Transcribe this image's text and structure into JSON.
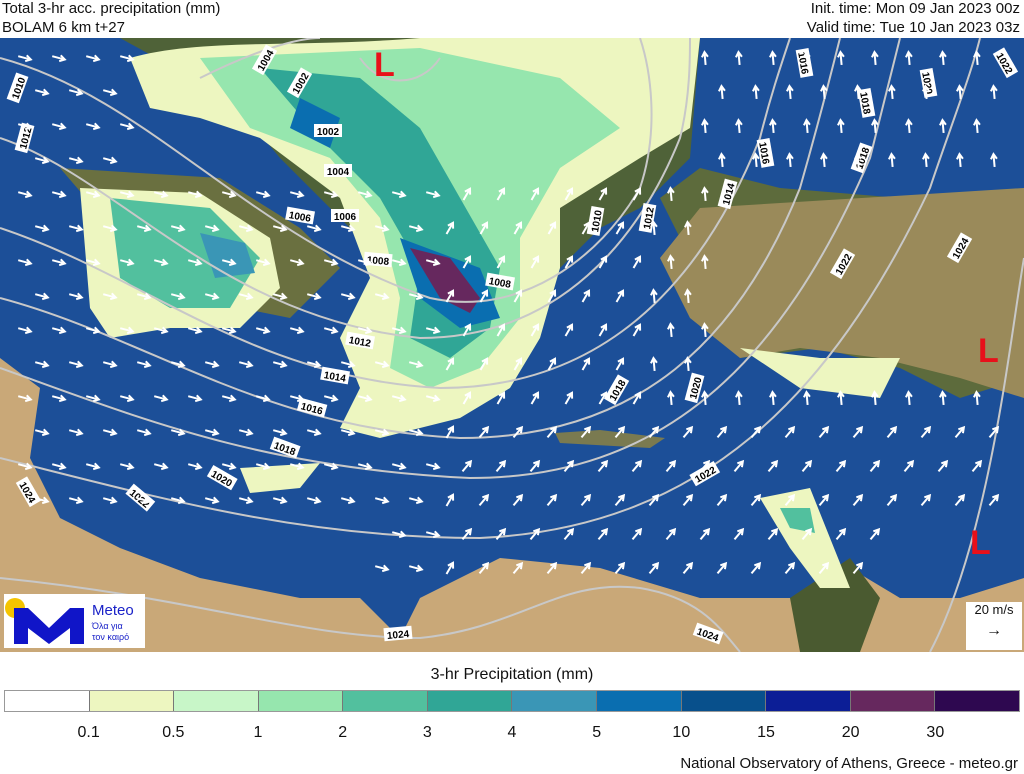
{
  "header": {
    "title": "Total 3-hr acc. precipitation (mm)",
    "subtitle": "BOLAM 6 km t+27",
    "init_time": "Init. time: Mon 09 Jan 2023 00z",
    "valid_time": "Valid time: Tue 10 Jan 2023 03z"
  },
  "map": {
    "colors": {
      "sea": "#1c4f98",
      "land": "#c8a878",
      "isobar": "#c8c8c8",
      "low_marker": "#e8101a"
    },
    "low_marker": "L",
    "isobar_labels": [
      "1010",
      "1012",
      "1004",
      "1002",
      "1002",
      "1004",
      "1006",
      "1006",
      "1008",
      "1008",
      "1010",
      "1012",
      "1012",
      "1014",
      "1016",
      "1018",
      "1020",
      "1022",
      "1024",
      "1024",
      "1024",
      "1016",
      "1016",
      "1018",
      "1018",
      "1020",
      "1022",
      "1022",
      "1024",
      "1014",
      "1018",
      "1020",
      "1022"
    ],
    "wind_scale": {
      "label": "20 m/s",
      "arrow": "→"
    }
  },
  "logo": {
    "brand": "Meteo",
    "tagline_1": "Όλα για",
    "tagline_2": "τον καιρό"
  },
  "colorbar": {
    "title": "3-hr Precipitation (mm)",
    "colors": [
      "#ffffff",
      "#edf6c0",
      "#c8f6c8",
      "#96e6ae",
      "#52c09e",
      "#30a696",
      "#3a96b6",
      "#0a6eb0",
      "#08508c",
      "#0c1e96",
      "#66285e",
      "#2e0850"
    ],
    "ticks": [
      "0.1",
      "0.5",
      "1",
      "2",
      "3",
      "4",
      "5",
      "10",
      "15",
      "20",
      "30"
    ]
  },
  "footer": {
    "credit": "National Observatory of Athens, Greece - meteo.gr"
  }
}
